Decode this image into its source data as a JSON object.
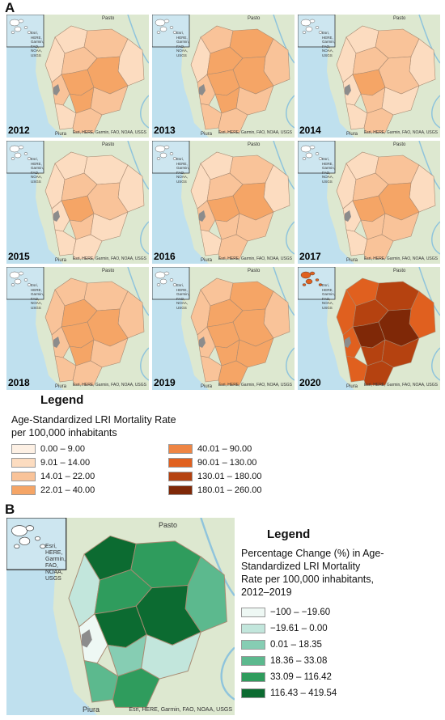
{
  "panel_a_label": "A",
  "panel_b_label": "B",
  "map_common": {
    "city_north": "Pasto",
    "city_south": "Piura",
    "credit": "Esri, HERE, Garmin, FAO, NOAA, USGS",
    "inset_credit": "Esri, HERE, Garmin, FAO, NOAA, USGS"
  },
  "years": [
    "2012",
    "2013",
    "2014",
    "2015",
    "2016",
    "2017",
    "2018",
    "2019",
    "2020"
  ],
  "legend_a": {
    "title": "Legend",
    "subtitle_line1": "Age-Standardized LRI Mortality Rate",
    "subtitle_line2": "per 100,000 inhabitants",
    "items": [
      {
        "label": "0.00 – 9.00",
        "color": "#fdf0e4"
      },
      {
        "label": "9.01 – 14.00",
        "color": "#fcdcc0"
      },
      {
        "label": "14.01 – 22.00",
        "color": "#f9c399"
      },
      {
        "label": "22.01 – 40.00",
        "color": "#f5a566"
      },
      {
        "label": "40.01 – 90.00",
        "color": "#ee8544"
      },
      {
        "label": "90.01 – 130.00",
        "color": "#e0601f"
      },
      {
        "label": "130.01 – 180.00",
        "color": "#b54210"
      },
      {
        "label": "180.01 – 260.00",
        "color": "#7f2807"
      }
    ]
  },
  "legend_b": {
    "title": "Legend",
    "subtitle": [
      "Percentage Change (%) in Age-",
      "Standardized LRI Mortality",
      "Rate per 100,000 inhabitants,",
      "2012–2019"
    ],
    "items": [
      {
        "label": "−100 – −19.60",
        "color": "#eef8f4"
      },
      {
        "label": "−19.61 – 0.00",
        "color": "#c2e6dc"
      },
      {
        "label": "0.01 – 18.35",
        "color": "#86cdb3"
      },
      {
        "label": "18.36 – 33.08",
        "color": "#5cb98e"
      },
      {
        "label": "33.09 – 116.42",
        "color": "#2f9c5d"
      },
      {
        "label": "116.43 – 419.54",
        "color": "#0c6b31"
      }
    ]
  },
  "year_palettes": [
    [
      1,
      2,
      1,
      1,
      2,
      3,
      3,
      2,
      3,
      2,
      1,
      2
    ],
    [
      2,
      3,
      2,
      1,
      3,
      3,
      3,
      2,
      3,
      2,
      2,
      2
    ],
    [
      1,
      2,
      1,
      1,
      2,
      2,
      3,
      1,
      2,
      1,
      1,
      2
    ],
    [
      1,
      1,
      1,
      1,
      2,
      2,
      3,
      1,
      2,
      1,
      1,
      1
    ],
    [
      1,
      2,
      1,
      1,
      2,
      3,
      3,
      2,
      2,
      2,
      1,
      2
    ],
    [
      1,
      2,
      1,
      1,
      2,
      3,
      3,
      1,
      2,
      2,
      1,
      2
    ],
    [
      2,
      2,
      2,
      2,
      3,
      3,
      3,
      2,
      3,
      2,
      2,
      2
    ],
    [
      2,
      3,
      2,
      2,
      3,
      3,
      3,
      2,
      3,
      3,
      2,
      3
    ],
    [
      5,
      6,
      5,
      5,
      6,
      7,
      7,
      5,
      6,
      6,
      5,
      6
    ]
  ],
  "panel_b_palette": [
    5,
    4,
    3,
    1,
    4,
    5,
    5,
    0,
    2,
    1,
    3,
    4
  ]
}
